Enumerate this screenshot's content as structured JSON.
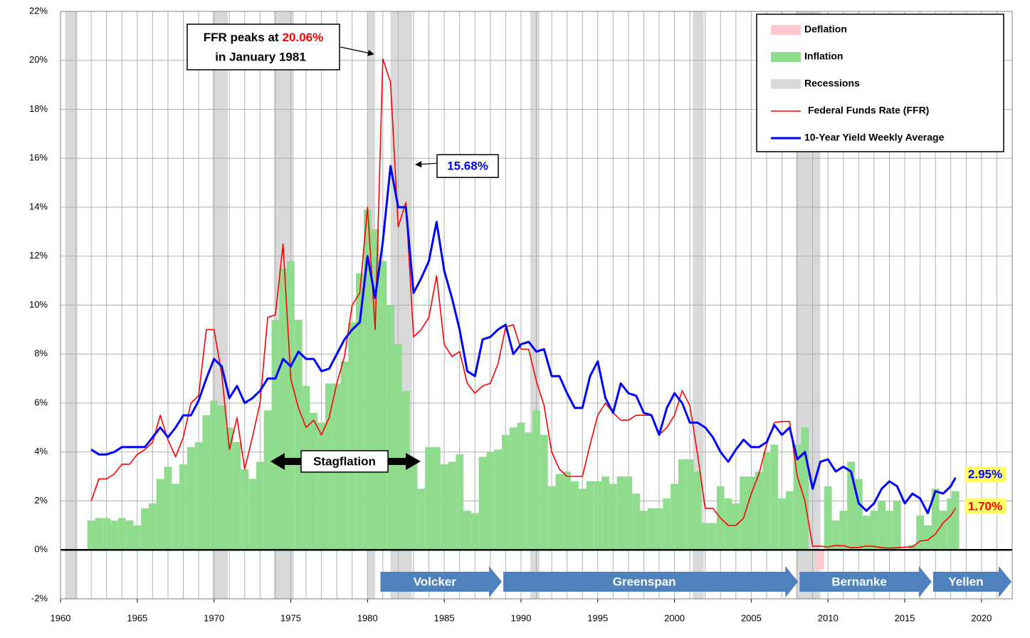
{
  "chart_data": {
    "type": "line",
    "xlim": [
      1960,
      2022
    ],
    "xticks": [
      1960,
      1965,
      1970,
      1975,
      1980,
      1985,
      1990,
      1995,
      2000,
      2005,
      2010,
      2015,
      2020
    ],
    "xgrid_step": 1,
    "ylim": [
      -2,
      22
    ],
    "yticks": [
      {
        "value": -2,
        "label": "-2%"
      },
      {
        "value": 0,
        "label": "0%"
      },
      {
        "value": 2,
        "label": "2%"
      },
      {
        "value": 4,
        "label": "4%"
      },
      {
        "value": 6,
        "label": "6%"
      },
      {
        "value": 8,
        "label": "8%"
      },
      {
        "value": 10,
        "label": "10%"
      },
      {
        "value": 12,
        "label": "12%"
      },
      {
        "value": 14,
        "label": "14%"
      },
      {
        "value": 16,
        "label": "16%"
      },
      {
        "value": 18,
        "label": "18%"
      },
      {
        "value": 20,
        "label": "20%"
      },
      {
        "value": 22,
        "label": "22%"
      }
    ],
    "grid": true,
    "x": [
      1962,
      1962.5,
      1963,
      1963.5,
      1964,
      1964.5,
      1965,
      1965.5,
      1966,
      1966.5,
      1967,
      1967.5,
      1968,
      1968.5,
      1969,
      1969.5,
      1970,
      1970.5,
      1971,
      1971.5,
      1972,
      1972.5,
      1973,
      1973.5,
      1974,
      1974.5,
      1975,
      1975.5,
      1976,
      1976.5,
      1977,
      1977.5,
      1978,
      1978.5,
      1979,
      1979.5,
      1980,
      1980.5,
      1981,
      1981.5,
      1982,
      1982.5,
      1983,
      1983.5,
      1984,
      1984.5,
      1985,
      1985.5,
      1986,
      1986.5,
      1987,
      1987.5,
      1988,
      1988.5,
      1989,
      1989.5,
      1990,
      1990.5,
      1991,
      1991.5,
      1992,
      1992.5,
      1993,
      1993.5,
      1994,
      1994.5,
      1995,
      1995.5,
      1996,
      1996.5,
      1997,
      1997.5,
      1998,
      1998.5,
      1999,
      1999.5,
      2000,
      2000.5,
      2001,
      2001.5,
      2002,
      2002.5,
      2003,
      2003.5,
      2004,
      2004.5,
      2005,
      2005.5,
      2006,
      2006.5,
      2007,
      2007.5,
      2008,
      2008.5,
      2009,
      2009.5,
      2010,
      2010.5,
      2011,
      2011.5,
      2012,
      2012.5,
      2013,
      2013.5,
      2014,
      2014.5,
      2015,
      2015.5,
      2016,
      2016.5,
      2017,
      2017.5,
      2018,
      2018.3
    ],
    "series": [
      {
        "name": "Inflation",
        "color": "#8fdc8f",
        "kind": "area",
        "values": [
          1.2,
          1.3,
          1.3,
          1.2,
          1.3,
          1.2,
          1.0,
          1.7,
          1.9,
          2.9,
          3.4,
          2.7,
          3.5,
          4.2,
          4.4,
          5.5,
          6.1,
          5.9,
          5.0,
          4.4,
          3.3,
          2.9,
          3.6,
          5.7,
          9.4,
          11.5,
          11.8,
          9.4,
          6.7,
          5.6,
          5.2,
          6.8,
          6.8,
          7.7,
          9.3,
          11.3,
          13.9,
          13.1,
          11.8,
          10.0,
          8.4,
          6.5,
          3.7,
          2.5,
          4.2,
          4.2,
          3.5,
          3.6,
          3.9,
          1.6,
          1.5,
          3.8,
          4.0,
          4.1,
          4.7,
          5.0,
          5.2,
          4.8,
          5.7,
          4.7,
          2.6,
          3.1,
          3.2,
          2.8,
          2.5,
          2.8,
          2.8,
          3.0,
          2.7,
          3.0,
          3.0,
          2.3,
          1.6,
          1.7,
          1.7,
          2.1,
          2.7,
          3.7,
          3.7,
          3.2,
          1.1,
          1.1,
          2.6,
          2.1,
          1.9,
          3.0,
          3.0,
          3.2,
          4.0,
          4.3,
          2.1,
          2.4,
          4.3,
          5.0,
          0.0,
          -0.8,
          2.6,
          1.2,
          1.6,
          3.6,
          2.9,
          1.4,
          1.6,
          2.0,
          1.6,
          2.0,
          0.0,
          0.2,
          1.4,
          1.0,
          2.5,
          1.6,
          2.1,
          2.4
        ]
      },
      {
        "name": "Federal Funds Rate (FFR)",
        "color": "#ff0000",
        "kind": "line",
        "width": 1.6,
        "values": [
          2.0,
          2.9,
          2.9,
          3.1,
          3.5,
          3.5,
          3.9,
          4.1,
          4.4,
          5.5,
          4.5,
          3.8,
          4.6,
          6.0,
          6.3,
          9.0,
          9.0,
          7.2,
          4.1,
          5.4,
          3.3,
          4.6,
          6.0,
          9.5,
          9.6,
          12.5,
          7.0,
          5.8,
          5.0,
          5.3,
          4.7,
          5.4,
          6.8,
          7.9,
          10.0,
          10.5,
          14.0,
          9.0,
          20.06,
          19.1,
          13.2,
          14.2,
          8.7,
          9.0,
          9.5,
          11.2,
          8.4,
          7.9,
          8.1,
          6.8,
          6.4,
          6.7,
          6.8,
          7.6,
          9.1,
          9.2,
          8.2,
          8.2,
          6.9,
          5.9,
          4.0,
          3.3,
          3.0,
          3.0,
          3.0,
          4.3,
          5.5,
          6.0,
          5.6,
          5.3,
          5.3,
          5.5,
          5.5,
          5.5,
          4.7,
          5.0,
          5.5,
          6.5,
          5.9,
          3.9,
          1.7,
          1.7,
          1.3,
          1.0,
          1.0,
          1.3,
          2.3,
          3.1,
          4.3,
          5.2,
          5.25,
          5.25,
          3.0,
          2.0,
          0.15,
          0.15,
          0.12,
          0.18,
          0.17,
          0.09,
          0.1,
          0.16,
          0.14,
          0.09,
          0.07,
          0.09,
          0.11,
          0.13,
          0.36,
          0.4,
          0.65,
          1.1,
          1.4,
          1.7
        ]
      },
      {
        "name": "10-Year Yield Weekly Average",
        "color": "#0000ff",
        "kind": "line",
        "width": 3,
        "values": [
          4.1,
          3.9,
          3.9,
          4.0,
          4.2,
          4.2,
          4.2,
          4.2,
          4.6,
          5.0,
          4.6,
          5.0,
          5.5,
          5.5,
          6.1,
          7.0,
          7.8,
          7.5,
          6.2,
          6.7,
          6.0,
          6.2,
          6.5,
          7.0,
          7.0,
          7.8,
          7.5,
          8.1,
          7.8,
          7.8,
          7.3,
          7.4,
          8.0,
          8.6,
          9.0,
          9.3,
          12.0,
          10.3,
          12.6,
          15.68,
          14.0,
          14.0,
          10.5,
          11.1,
          11.8,
          13.4,
          11.4,
          10.3,
          9.0,
          7.3,
          7.1,
          8.6,
          8.7,
          9.0,
          9.2,
          8.0,
          8.4,
          8.5,
          8.1,
          8.2,
          7.1,
          7.1,
          6.4,
          5.8,
          5.8,
          7.1,
          7.7,
          6.2,
          5.6,
          6.8,
          6.4,
          6.3,
          5.6,
          5.5,
          4.7,
          5.8,
          6.4,
          6.0,
          5.2,
          5.2,
          5.0,
          4.6,
          4.0,
          3.6,
          4.1,
          4.5,
          4.2,
          4.2,
          4.4,
          5.1,
          4.7,
          5.0,
          3.7,
          4.0,
          2.5,
          3.6,
          3.7,
          3.2,
          3.4,
          3.2,
          1.9,
          1.6,
          1.9,
          2.5,
          2.8,
          2.6,
          1.9,
          2.3,
          2.1,
          1.5,
          2.4,
          2.3,
          2.6,
          2.95
        ]
      }
    ],
    "deflation": {
      "name": "Deflation",
      "color": "#ffc7ce"
    },
    "recessions": {
      "name": "Recessions",
      "color": "#d9d9d9",
      "periods": [
        [
          1960.3,
          1961.1
        ],
        [
          1969.9,
          1970.9
        ],
        [
          1973.9,
          1975.2
        ],
        [
          1980.0,
          1980.5
        ],
        [
          1981.5,
          1982.9
        ],
        [
          1990.6,
          1991.2
        ],
        [
          2001.2,
          2001.9
        ],
        [
          2007.9,
          2009.5
        ]
      ]
    },
    "ffr_peak_note": {
      "lead": "FFR peaks at",
      "value_label": "20.06%",
      "line2": "in January 1981"
    },
    "yield_peak_note": {
      "value": 15.68,
      "label": "15.68%"
    },
    "stagflation": "Stagflation",
    "end_labels": [
      {
        "value": 2.95,
        "label": "2.95%",
        "color": "#0000ff"
      },
      {
        "value": 1.7,
        "label": "1.70%",
        "color": "#ff0000"
      }
    ],
    "chairs": [
      {
        "name": "Volcker",
        "start": 1980.8,
        "end": 1988.8
      },
      {
        "name": "Greenspan",
        "start": 1988.8,
        "end": 2008.1
      },
      {
        "name": "Bernanke",
        "start": 2008.1,
        "end": 2016.8
      },
      {
        "name": "Yellen",
        "start": 2016.8,
        "end": 2022
      }
    ],
    "chair_color": "#4f81bd"
  }
}
